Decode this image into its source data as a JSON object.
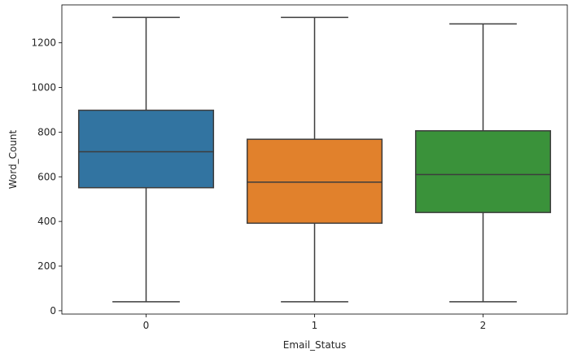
{
  "chart_data": {
    "type": "box",
    "xlabel": "Email_Status",
    "ylabel": "Word_Count",
    "ylim": [
      -15,
      1370
    ],
    "yticks": [
      0,
      200,
      400,
      600,
      800,
      1000,
      1200
    ],
    "grid": false,
    "categories": [
      "0",
      "1",
      "2"
    ],
    "boxes": [
      {
        "category": "0",
        "whisker_low": 40,
        "q1": 551,
        "median": 712,
        "q3": 898,
        "whisker_high": 1314,
        "color": "#3274a1"
      },
      {
        "category": "1",
        "whisker_low": 40,
        "q1": 392,
        "median": 576,
        "q3": 768,
        "whisker_high": 1314,
        "color": "#e1812c"
      },
      {
        "category": "2",
        "whisker_low": 40,
        "q1": 440,
        "median": 610,
        "q3": 806,
        "whisker_high": 1285,
        "color": "#3a923a"
      }
    ],
    "line_color": "#3d3d3d"
  }
}
